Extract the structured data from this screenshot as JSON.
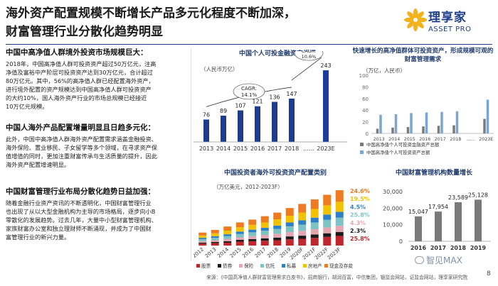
{
  "header": {
    "title_line1": "海外资产配置规模不断增长产品多元化程度不断加深，",
    "title_line2": "财富管理行业分散化趋势明显",
    "logo_name": "理享家",
    "logo_sub": "ASSET PRO"
  },
  "sections": [
    {
      "heading": "中国中高净值人群境外投资市场规模巨大：",
      "lines": [
        "2018年，中国高净值人群可投资资产超过50万亿元，注高",
        "净值及富裕中产阶层可投资资产达到30万亿元，合计超过",
        "80万亿元。其中，56%的高净值人群已经配置海外资产，",
        "进行境外配置的资产规模达到中国高净值人群可投资资产",
        "的大约10%，国人海外资产行业的市场总规模已经接近",
        "10万亿元规模。"
      ]
    },
    {
      "heading": "中国人海外产品配置增量明显且日趋多元化：",
      "lines": [
        "此外，中国中高净值人群海外资产配置需求涵盖金融投资、",
        "海外保险、置业移民、子女留学等多个领域，在寻求资产保",
        "值增值的同时，更加注重财富传承与生活质量的提升，因此",
        "海外资产配置增速明显。"
      ]
    },
    {
      "heading": "中国财富管理行业布局分散化趋势日益加强：",
      "lines": [
        "随着金融行业资产资讯的不断透明化，中国财富管理行业",
        "也出现了从以大型金融机构为主导的市场格局，逐步向小B",
        "零散化的发展趋势。过去几年，大量中小型财富管理机构、",
        "家族财富办公室和独立理财师不断涌现，并成为了中国财",
        "富管理行业的新兴力量。"
      ]
    }
  ],
  "footer": {
    "source": "来源：《中国高净值人群财富管理需求白皮书》，招商银行，胡润百富，中信集团，银监会网站，证监会网站，理享家研究院",
    "wechat": "智见MAX",
    "page_number": "8"
  },
  "chart_data": [
    {
      "type": "bar",
      "title": "中国个人可投金融资产规模",
      "unit_label": "（人民币万亿）",
      "categories": [
        "2013",
        "2014",
        "2015",
        "2016",
        "2017",
        "2018",
        "……",
        "2023E"
      ],
      "values": [
        76,
        89,
        107,
        121,
        136,
        147,
        null,
        243
      ],
      "value_labels": [
        "76",
        "89",
        "107",
        "121",
        "136",
        "147",
        "",
        "243"
      ],
      "annotations": [
        {
          "label": "CAGR:",
          "value": "14.1%"
        },
        {
          "label": "CAGR:",
          "value": "10.6%"
        }
      ],
      "colors": {
        "bar": "#1e3c8a",
        "highlight": "#1c3d9c"
      }
    },
    {
      "type": "bar",
      "title": "快速增长的高净值群体可投资资产，形成规模可观的财富管理需求",
      "unit_label": "（万亿，人民币）",
      "categories": [
        "2013",
        "2014",
        "2015",
        "2016",
        "2017",
        "2018",
        "……",
        "2023E"
      ],
      "series": [
        {
          "name": "中国高净值个人可投资金融资产总额",
          "values": [
            8,
            10,
            11,
            12,
            13,
            14,
            null,
            25
          ],
          "color": "#7a7a7a"
        },
        {
          "name": "中国高净值个人可投资资产总额",
          "values": [
            32,
            33,
            35,
            36,
            37,
            38,
            null,
            58
          ],
          "color": "#7aa6d6"
        }
      ],
      "yticks": [
        "0",
        "20",
        "40",
        "60",
        "80",
        "100"
      ],
      "ylim": [
        0,
        100
      ]
    },
    {
      "type": "bar",
      "title": "中国投资者海外可投资资产配置类别",
      "unit_label": "（万亿美元，2012-2023F）",
      "categories": [
        "2012",
        "2013",
        "2014",
        "2015",
        "2016",
        "2017",
        "2018",
        "2019",
        "2020F",
        "2021F",
        "2022F",
        "2023F"
      ],
      "stacked": true,
      "series": [
        {
          "name": "股票",
          "color": "#c0272d",
          "values": [
            0.4,
            0.5,
            0.6,
            0.8,
            0.9,
            1.0,
            1.1,
            1.3,
            1.4,
            1.6,
            1.8,
            2.0
          ]
        },
        {
          "name": "债券",
          "color": "#1a1a1a",
          "values": [
            0.2,
            0.25,
            0.3,
            0.4,
            0.45,
            0.5,
            0.55,
            0.6,
            0.65,
            0.7,
            0.75,
            0.8
          ]
        },
        {
          "name": "保险",
          "color": "#e6a6b0",
          "values": [
            0.3,
            0.35,
            0.45,
            0.5,
            0.6,
            0.7,
            0.8,
            0.9,
            1.0,
            1.1,
            1.2,
            1.3
          ]
        },
        {
          "name": "信托",
          "color": "#7ec3c3",
          "values": [
            0.4,
            0.5,
            0.6,
            0.7,
            0.8,
            0.9,
            1.0,
            1.2,
            1.3,
            1.4,
            1.6,
            1.7
          ]
        },
        {
          "name": "私募",
          "color": "#2d7fc8",
          "values": [
            0.3,
            0.35,
            0.4,
            0.5,
            0.55,
            0.6,
            0.7,
            0.8,
            0.9,
            1.0,
            1.1,
            1.2
          ]
        },
        {
          "name": "房地产",
          "color": "#f2c200",
          "values": [
            0.5,
            0.6,
            0.75,
            0.9,
            1.0,
            1.1,
            1.3,
            1.4,
            1.6,
            1.8,
            1.9,
            2.1
          ]
        },
        {
          "name": "现金及存款",
          "color": "#ee7a22",
          "values": [
            0.6,
            0.7,
            0.85,
            1.0,
            1.1,
            1.3,
            1.4,
            1.6,
            1.8,
            2.0,
            2.2,
            2.4
          ]
        }
      ],
      "end_labels": [
        {
          "value": "24.6%",
          "color": "#ee7a22"
        },
        {
          "value": "19.5%",
          "color": "#f2c200"
        },
        {
          "value": "4.5%",
          "color": "#2d7fc8"
        },
        {
          "value": "25.8%",
          "color": "#7ec3c3"
        },
        {
          "value": "4.3%",
          "color": "#e6a6b0"
        },
        {
          "value": "2.3%",
          "color": "#1a1a1a"
        },
        {
          "value": "25.8%",
          "color": "#c0272d"
        }
      ]
    },
    {
      "type": "bar",
      "title": "中国财富管理机构数量增长",
      "categories": [
        "2016",
        "2017",
        "2018",
        "2019"
      ],
      "values": [
        15047,
        17954,
        23589,
        25128
      ],
      "value_labels": [
        "15,047",
        "17,954",
        "23,589",
        "25,128"
      ],
      "yticks": [
        "0",
        "10,000",
        "20,000",
        "30,000"
      ],
      "ylim": [
        0,
        30000
      ],
      "colors": {
        "bar": "#7a7a7a"
      }
    }
  ]
}
